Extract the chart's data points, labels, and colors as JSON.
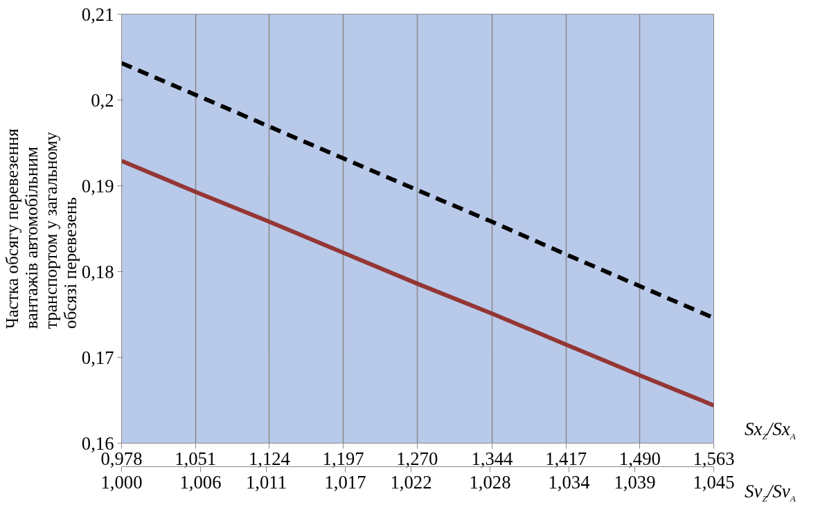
{
  "chart_data": {
    "type": "line",
    "ylabel": "Частка обсягу перевезення вантажів автомобільним транспортом у загальному обсязі перевезень",
    "xlabel": "Sx$_{Z}$/Sx$_{A}$",
    "x2label": "Sv$_{Z}$/Sv$_{A}$",
    "x": [
      0.978,
      1.051,
      1.124,
      1.197,
      1.27,
      1.344,
      1.417,
      1.49,
      1.563
    ],
    "series": [
      {
        "color": "#000000",
        "line_style": "dashed",
        "values": [
          0.2043,
          0.2006,
          0.1969,
          0.1932,
          0.1895,
          0.1858,
          0.182,
          0.1783,
          0.1746
        ]
      },
      {
        "color": "#943634",
        "line_style": "solid",
        "values": [
          0.1929,
          0.1893,
          0.1858,
          0.1822,
          0.1786,
          0.1751,
          0.1715,
          0.1679,
          0.1644
        ]
      }
    ],
    "xlim": [
      0.978,
      1.563
    ],
    "xticks": [
      {
        "value": 0.978,
        "label": "0,978"
      },
      {
        "value": 1.051,
        "label": "1,051"
      },
      {
        "value": 1.124,
        "label": "1,124"
      },
      {
        "value": 1.197,
        "label": "1,197"
      },
      {
        "value": 1.27,
        "label": "1,270"
      },
      {
        "value": 1.344,
        "label": "1,344"
      },
      {
        "value": 1.417,
        "label": "1,417"
      },
      {
        "value": 1.49,
        "label": "1,490"
      },
      {
        "value": 1.563,
        "label": "1,563"
      }
    ],
    "x2lim": [
      1.0,
      1.045
    ],
    "x2ticks": [
      {
        "value": 1.0,
        "label": "1,000"
      },
      {
        "value": 1.006,
        "label": "1,006"
      },
      {
        "value": 1.011,
        "label": "1,011"
      },
      {
        "value": 1.017,
        "label": "1,017"
      },
      {
        "value": 1.022,
        "label": "1,022"
      },
      {
        "value": 1.028,
        "label": "1,028"
      },
      {
        "value": 1.034,
        "label": "1,034"
      },
      {
        "value": 1.039,
        "label": "1,039"
      },
      {
        "value": 1.045,
        "label": "1,045"
      }
    ],
    "ylim": [
      0.16,
      0.21
    ],
    "yticks": [
      {
        "value": 0.16,
        "label": "0,16"
      },
      {
        "value": 0.17,
        "label": "0,17"
      },
      {
        "value": 0.18,
        "label": "0,18"
      },
      {
        "value": 0.19,
        "label": "0,19"
      },
      {
        "value": 0.2,
        "label": "0,2"
      },
      {
        "value": 0.21,
        "label": "0,21"
      }
    ],
    "grid": "x",
    "marker": "none"
  }
}
